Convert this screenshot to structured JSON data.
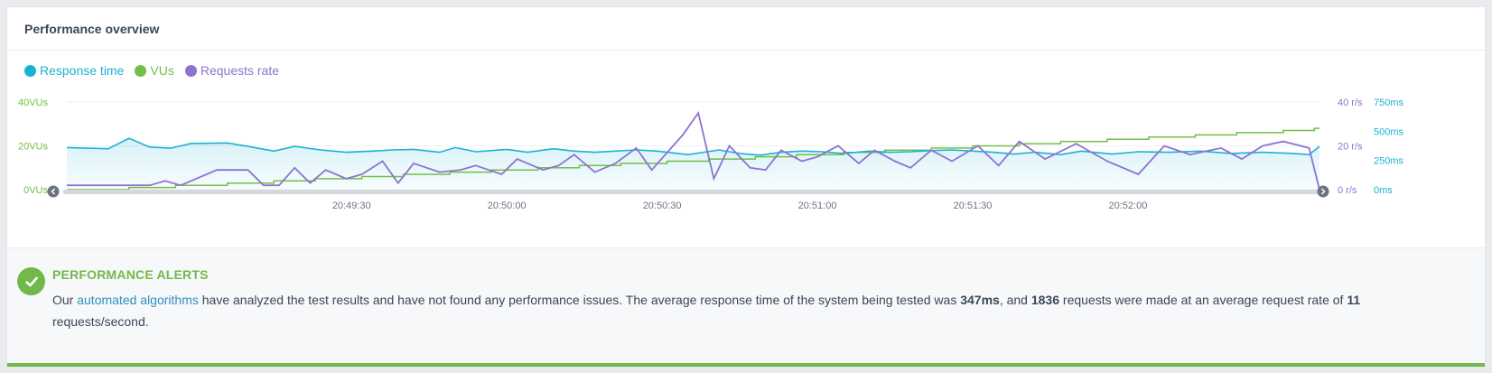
{
  "panel": {
    "title": "Performance overview"
  },
  "colors": {
    "response": "#1ab2d3",
    "vus": "#73bf45",
    "requests": "#8e73d1",
    "success": "#73b84a",
    "link": "#2f8fbf"
  },
  "legend": [
    {
      "key": "response",
      "label": "Response time",
      "color": "#1ab2d3"
    },
    {
      "key": "vus",
      "label": "VUs",
      "color": "#73bf45"
    },
    {
      "key": "requests",
      "label": "Requests rate",
      "color": "#8e73d1"
    }
  ],
  "chart_data": {
    "type": "line",
    "x_ticks": [
      "20:49:30",
      "20:50:00",
      "20:50:30",
      "20:51:00",
      "20:51:30",
      "20:52:00"
    ],
    "axes": {
      "vus": {
        "ticks": [
          "0VUs",
          "20VUs",
          "40VUs"
        ],
        "range": [
          0,
          40
        ]
      },
      "requests": {
        "ticks": [
          "0 r/s",
          "20 r/s",
          "40 r/s"
        ],
        "range": [
          0,
          40
        ]
      },
      "response": {
        "ticks": [
          "0ms",
          "250ms",
          "500ms",
          "750ms"
        ],
        "range": [
          0,
          750
        ]
      }
    },
    "x_range_seconds": [
      -55,
      187
    ],
    "series": [
      {
        "name": "Response time",
        "color": "#1ab2d3",
        "fill": true,
        "x": [
          -55,
          -47,
          -43,
          -39,
          -35,
          -31,
          -24,
          -20,
          -15,
          -11,
          -6,
          -1,
          4,
          8,
          12,
          17,
          20,
          24,
          30,
          34,
          39,
          43,
          47,
          51,
          55,
          59,
          65,
          71,
          75,
          79,
          83,
          87,
          91,
          95,
          100,
          104,
          108,
          112,
          116,
          120,
          124,
          128,
          132,
          137,
          141,
          147,
          152,
          158,
          164,
          170,
          176,
          182,
          185,
          187
        ],
        "y": [
          360,
          350,
          440,
          365,
          355,
          395,
          400,
          370,
          330,
          370,
          340,
          320,
          330,
          340,
          345,
          320,
          360,
          325,
          345,
          320,
          350,
          330,
          320,
          330,
          340,
          330,
          300,
          340,
          310,
          295,
          320,
          330,
          325,
          310,
          330,
          320,
          325,
          335,
          340,
          330,
          320,
          305,
          320,
          300,
          330,
          305,
          325,
          320,
          330,
          310,
          320,
          310,
          300,
          370
        ]
      },
      {
        "name": "VUs",
        "color": "#73bf45",
        "x": [
          -55,
          -43,
          -43,
          -34,
          -34,
          -24,
          -24,
          -15,
          -15,
          -7,
          -7,
          2,
          2,
          10,
          10,
          19,
          19,
          27,
          27,
          36,
          36,
          44,
          44,
          52,
          52,
          61,
          61,
          69,
          69,
          78,
          78,
          86,
          86,
          95,
          95,
          103,
          103,
          112,
          112,
          120,
          120,
          129,
          129,
          137,
          137,
          146,
          146,
          154,
          154,
          163,
          163,
          171,
          171,
          180,
          180,
          186,
          186,
          187
        ],
        "y": [
          0,
          0,
          1,
          1,
          2,
          2,
          3,
          3,
          4,
          4,
          5,
          5,
          6,
          6,
          7,
          7,
          8,
          8,
          9,
          9,
          10,
          10,
          11,
          11,
          12,
          12,
          13,
          13,
          14,
          14,
          15,
          15,
          16,
          16,
          17,
          17,
          18,
          18,
          19,
          19,
          20,
          20,
          21,
          21,
          22,
          22,
          23,
          23,
          24,
          24,
          25,
          25,
          26,
          26,
          27,
          27,
          28,
          28
        ]
      },
      {
        "name": "Requests rate",
        "color": "#8e73d1",
        "x": [
          -55,
          -47,
          -43,
          -39,
          -36,
          -33,
          -26,
          -20,
          -17,
          -14,
          -11,
          -8,
          -5,
          -1,
          2,
          6,
          9,
          12,
          17,
          21,
          24,
          29,
          32,
          37,
          40,
          43,
          47,
          51,
          55,
          58,
          61,
          64,
          67,
          70,
          73,
          77,
          80,
          83,
          87,
          90,
          94,
          98,
          101,
          105,
          108,
          112,
          116,
          121,
          125,
          129,
          134,
          140,
          146,
          152,
          157,
          162,
          166,
          168,
          172,
          176,
          180,
          185,
          187
        ],
        "y": [
          2,
          2,
          2,
          2,
          4,
          2,
          9,
          9,
          2,
          2,
          10,
          3,
          9,
          5,
          7,
          13,
          3,
          12,
          8,
          9,
          11,
          7,
          14,
          9,
          11,
          16,
          8,
          12,
          19,
          9,
          17,
          25,
          35,
          5,
          20,
          10,
          9,
          18,
          13,
          15,
          20,
          12,
          18,
          13,
          10,
          18,
          13,
          20,
          11,
          22,
          14,
          21,
          13,
          7,
          20,
          16,
          18,
          19,
          14,
          20,
          22,
          19,
          0
        ]
      }
    ]
  },
  "alerts": {
    "title": "PERFORMANCE ALERTS",
    "text_prefix": "Our",
    "link_text": "automated algorithms",
    "text_1": "have analyzed the test results and have not found any performance issues. The average response time of the system being tested was",
    "avg_response": "347ms",
    "text_2": ", and",
    "requests_count": "1836",
    "text_3": "requests were made at an average request rate of",
    "avg_rate": "11",
    "text_4": "requests/second."
  }
}
